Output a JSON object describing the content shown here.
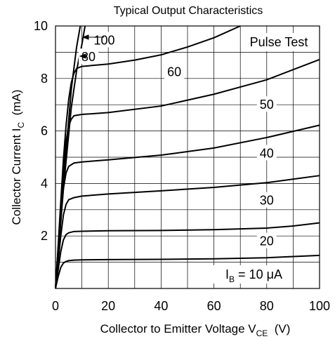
{
  "chart_data": {
    "type": "line",
    "title": "Typical Output Characteristics",
    "xlabel": {
      "main": "Collector to Emitter Voltage  V",
      "sub": "CE",
      "unit": "  (V)"
    },
    "ylabel": {
      "main": "Collector Current  I",
      "sub": "C",
      "unit": "  (mA)"
    },
    "xlim": [
      0,
      100
    ],
    "ylim": [
      0,
      10
    ],
    "x_ticks": [
      "0",
      "20",
      "40",
      "60",
      "80",
      "100"
    ],
    "x_tick_values": [
      0,
      20,
      40,
      60,
      80,
      100
    ],
    "y_ticks": [
      "2",
      "4",
      "6",
      "8",
      "10"
    ],
    "y_tick_values": [
      2,
      4,
      6,
      8,
      10
    ],
    "grid": true,
    "annotations": {
      "pulse_test": "Pulse Test",
      "ib_prefix": "I",
      "ib_sub": "B",
      "ib_value": " = 10 μA"
    },
    "series": [
      {
        "name": "I_B = 10 μA",
        "label": "",
        "label_x": 0,
        "label_y": 0,
        "x": [
          0,
          1,
          2,
          3,
          4,
          5,
          7,
          10,
          20,
          40,
          60,
          80,
          100
        ],
        "y": [
          0,
          0.45,
          0.8,
          0.97,
          1.03,
          1.06,
          1.08,
          1.09,
          1.1,
          1.11,
          1.13,
          1.17,
          1.26
        ]
      },
      {
        "name": "20",
        "label": "20",
        "label_x": 80,
        "label_y": 1.8,
        "x": [
          0,
          1,
          2,
          3,
          4,
          5,
          7,
          10,
          20,
          40,
          60,
          80,
          90,
          100
        ],
        "y": [
          0,
          0.7,
          1.4,
          1.85,
          2.05,
          2.12,
          2.17,
          2.18,
          2.2,
          2.21,
          2.24,
          2.3,
          2.38,
          2.5
        ]
      },
      {
        "name": "30",
        "label": "30",
        "label_x": 80,
        "label_y": 3.35,
        "x": [
          0,
          1,
          2,
          3,
          4,
          5,
          7,
          10,
          20,
          40,
          60,
          80,
          100
        ],
        "y": [
          0,
          1.0,
          2.0,
          2.8,
          3.2,
          3.38,
          3.46,
          3.52,
          3.6,
          3.72,
          3.85,
          4.03,
          4.3
        ]
      },
      {
        "name": "40",
        "label": "40",
        "label_x": 80,
        "label_y": 5.15,
        "x": [
          0,
          1,
          2,
          3,
          4,
          5,
          7,
          10,
          20,
          40,
          60,
          80,
          100
        ],
        "y": [
          0,
          1.3,
          2.7,
          3.8,
          4.4,
          4.65,
          4.78,
          4.82,
          4.9,
          5.08,
          5.35,
          5.75,
          6.22
        ]
      },
      {
        "name": "50",
        "label": "50",
        "label_x": 80,
        "label_y": 7.0,
        "x": [
          0,
          1,
          2,
          3,
          4,
          5,
          6,
          7,
          10,
          20,
          40,
          60,
          80,
          100
        ],
        "y": [
          0,
          1.5,
          3.1,
          4.5,
          5.6,
          6.2,
          6.45,
          6.58,
          6.63,
          6.7,
          6.95,
          7.4,
          7.95,
          8.72
        ]
      },
      {
        "name": "60",
        "label": "60",
        "label_x": 45,
        "label_y": 8.25,
        "x": [
          0,
          1,
          2,
          3,
          4,
          5,
          6,
          7,
          8,
          10,
          20,
          30,
          40,
          50,
          60,
          70
        ],
        "y": [
          0,
          1.6,
          3.3,
          4.9,
          6.2,
          7.2,
          7.85,
          8.2,
          8.38,
          8.46,
          8.55,
          8.7,
          8.9,
          9.2,
          9.55,
          10.0
        ]
      },
      {
        "name": "80",
        "label": "80",
        "label_x": 12.5,
        "label_y": 8.82,
        "x": [
          0,
          3,
          6,
          8,
          10,
          11.2
        ],
        "y": [
          0,
          3.8,
          6.9,
          8.3,
          9.3,
          10.0
        ]
      },
      {
        "name": "100",
        "label": "100",
        "label_x": 18.5,
        "label_y": 9.45,
        "x": [
          0,
          3,
          6,
          8,
          9.4
        ],
        "y": [
          0,
          4.0,
          7.6,
          9.2,
          10.0
        ]
      }
    ]
  }
}
